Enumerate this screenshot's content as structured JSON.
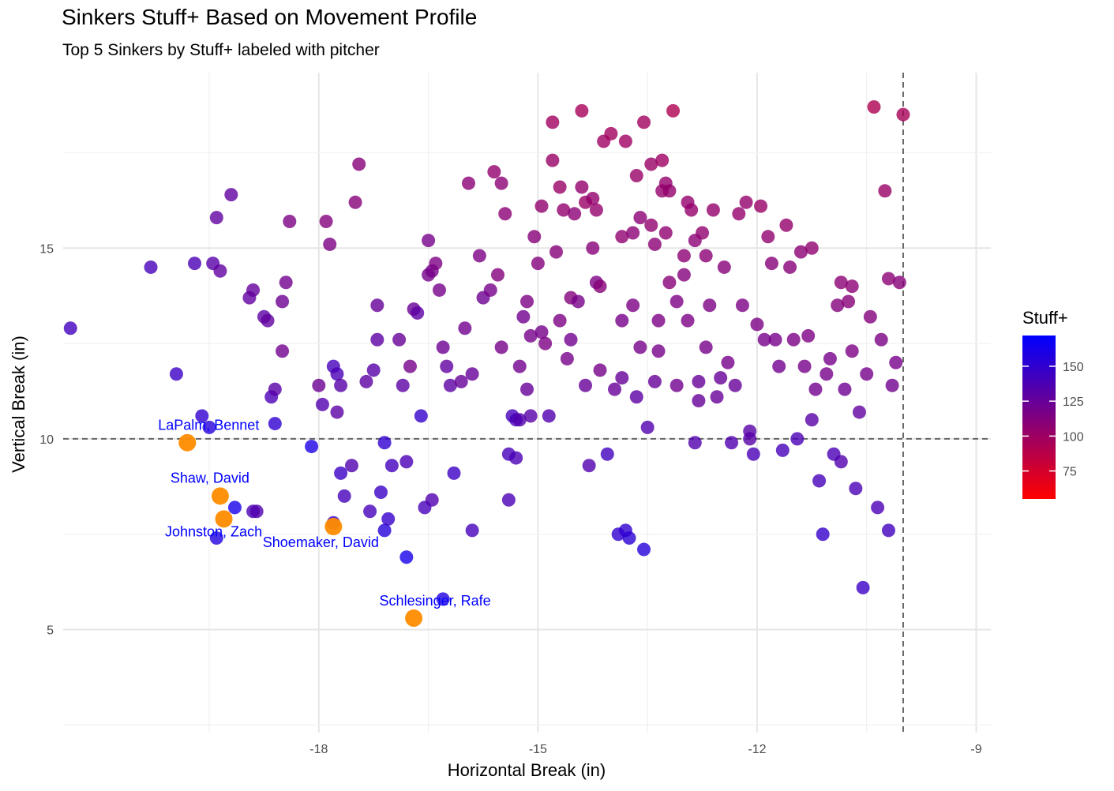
{
  "colors": {
    "low": "#ff0000",
    "high": "#0000ff",
    "highlight": "#ff8c00",
    "label": "#0000ff",
    "grid_major": "#e6e6e6",
    "grid_minor": "#f2f2f2",
    "reference_line": "#666666"
  },
  "chart_data": {
    "type": "scatter",
    "title": "Sinkers Stuff+ Based on Movement Profile",
    "subtitle": "Top 5 Sinkers by Stuff+ labeled with pitcher",
    "xlabel": "Horizontal Break (in)",
    "ylabel": "Vertical Break (in)",
    "xlim": [
      -21.5,
      -8.8
    ],
    "ylim": [
      2.3,
      19.6
    ],
    "x_ticks": [
      -18,
      -15,
      -12,
      -9
    ],
    "y_ticks": [
      5,
      10,
      15
    ],
    "grid": true,
    "reference_lines": {
      "vertical_x": -10,
      "horizontal_y": 10
    },
    "legend": {
      "title": "Stuff+",
      "position": "right",
      "scale": "gradient",
      "range": [
        55,
        172
      ],
      "ticks": [
        75,
        100,
        125,
        150
      ]
    },
    "highlighted": [
      {
        "name": "LaPalm, Bennet",
        "x": -19.8,
        "y": 9.9
      },
      {
        "name": "Shaw, David",
        "x": -19.35,
        "y": 8.5
      },
      {
        "name": "Johnston, Zach",
        "x": -19.3,
        "y": 7.9
      },
      {
        "name": "Shoemaker, David",
        "x": -17.8,
        "y": 7.7
      },
      {
        "name": "Schlesinger, Rafe",
        "x": -16.7,
        "y": 5.3
      }
    ],
    "points": [
      [
        -21.4,
        12.9,
        142
      ],
      [
        -20.3,
        14.5,
        140
      ],
      [
        -19.95,
        11.7,
        145
      ],
      [
        -19.7,
        14.6,
        138
      ],
      [
        -19.6,
        10.6,
        150
      ],
      [
        -19.5,
        10.3,
        155
      ],
      [
        -19.45,
        14.6,
        132
      ],
      [
        -19.35,
        14.4,
        128
      ],
      [
        -19.4,
        7.4,
        158
      ],
      [
        -19.4,
        15.8,
        128
      ],
      [
        -19.15,
        8.2,
        162
      ],
      [
        -19.2,
        16.4,
        128
      ],
      [
        -18.95,
        13.7,
        128
      ],
      [
        -18.9,
        13.9,
        126
      ],
      [
        -18.9,
        8.1,
        138
      ],
      [
        -18.85,
        8.1,
        135
      ],
      [
        -18.75,
        13.2,
        130
      ],
      [
        -18.7,
        13.1,
        128
      ],
      [
        -18.65,
        11.1,
        138
      ],
      [
        -18.6,
        11.3,
        132
      ],
      [
        -18.6,
        10.4,
        150
      ],
      [
        -18.5,
        12.3,
        120
      ],
      [
        -18.5,
        13.6,
        122
      ],
      [
        -18.45,
        14.1,
        120
      ],
      [
        -18.4,
        15.7,
        115
      ],
      [
        -18.1,
        9.8,
        160
      ],
      [
        -18.0,
        11.4,
        122
      ],
      [
        -17.95,
        10.9,
        135
      ],
      [
        -17.9,
        15.7,
        112
      ],
      [
        -17.85,
        15.1,
        115
      ],
      [
        -17.8,
        11.9,
        140
      ],
      [
        -17.75,
        11.7,
        138
      ],
      [
        -17.8,
        7.8,
        145
      ],
      [
        -17.75,
        10.7,
        130
      ],
      [
        -17.7,
        9.1,
        145
      ],
      [
        -17.7,
        11.4,
        132
      ],
      [
        -17.65,
        8.5,
        140
      ],
      [
        -17.55,
        9.3,
        135
      ],
      [
        -17.5,
        16.2,
        110
      ],
      [
        -17.45,
        17.2,
        110
      ],
      [
        -17.35,
        11.5,
        130
      ],
      [
        -17.3,
        8.1,
        140
      ],
      [
        -17.25,
        11.8,
        132
      ],
      [
        -17.2,
        13.5,
        125
      ],
      [
        -17.2,
        12.6,
        130
      ],
      [
        -17.15,
        8.6,
        145
      ],
      [
        -17.1,
        9.9,
        150
      ],
      [
        -17.1,
        7.6,
        155
      ],
      [
        -17.05,
        7.9,
        148
      ],
      [
        -17.0,
        9.3,
        142
      ],
      [
        -16.9,
        12.6,
        125
      ],
      [
        -16.85,
        11.4,
        130
      ],
      [
        -16.8,
        9.4,
        138
      ],
      [
        -16.8,
        6.9,
        162
      ],
      [
        -16.75,
        11.9,
        118
      ],
      [
        -16.7,
        13.4,
        125
      ],
      [
        -16.65,
        13.3,
        130
      ],
      [
        -16.6,
        10.6,
        148
      ],
      [
        -16.55,
        8.2,
        140
      ],
      [
        -16.5,
        15.2,
        118
      ],
      [
        -16.5,
        14.3,
        118
      ],
      [
        -16.45,
        14.4,
        118
      ],
      [
        -16.45,
        8.4,
        135
      ],
      [
        -16.4,
        14.6,
        115
      ],
      [
        -16.35,
        13.9,
        118
      ],
      [
        -16.3,
        12.4,
        122
      ],
      [
        -16.3,
        5.8,
        158
      ],
      [
        -16.25,
        11.9,
        128
      ],
      [
        -16.2,
        11.4,
        130
      ],
      [
        -16.15,
        9.1,
        145
      ],
      [
        -16.05,
        11.5,
        125
      ],
      [
        -16.0,
        12.9,
        120
      ],
      [
        -15.95,
        16.7,
        108
      ],
      [
        -15.9,
        11.7,
        125
      ],
      [
        -15.9,
        7.6,
        140
      ],
      [
        -15.8,
        14.8,
        115
      ],
      [
        -15.75,
        13.7,
        122
      ],
      [
        -15.65,
        13.9,
        118
      ],
      [
        -15.6,
        17.0,
        105
      ],
      [
        -15.55,
        14.3,
        112
      ],
      [
        -15.5,
        16.7,
        108
      ],
      [
        -15.5,
        12.4,
        118
      ],
      [
        -15.45,
        15.9,
        108
      ],
      [
        -15.4,
        8.4,
        138
      ],
      [
        -15.4,
        9.6,
        140
      ],
      [
        -15.35,
        10.6,
        140
      ],
      [
        -15.3,
        9.5,
        138
      ],
      [
        -15.3,
        10.5,
        140
      ],
      [
        -15.25,
        10.5,
        135
      ],
      [
        -15.25,
        11.9,
        120
      ],
      [
        -15.2,
        13.2,
        120
      ],
      [
        -15.15,
        11.3,
        125
      ],
      [
        -15.15,
        13.6,
        115
      ],
      [
        -15.1,
        12.7,
        118
      ],
      [
        -15.1,
        10.6,
        132
      ],
      [
        -15.05,
        15.3,
        110
      ],
      [
        -15.0,
        14.6,
        112
      ],
      [
        -14.95,
        16.1,
        105
      ],
      [
        -14.95,
        12.8,
        118
      ],
      [
        -14.9,
        12.5,
        115
      ],
      [
        -14.85,
        10.6,
        135
      ],
      [
        -14.8,
        17.3,
        102
      ],
      [
        -14.8,
        18.3,
        98
      ],
      [
        -14.75,
        14.9,
        110
      ],
      [
        -14.7,
        13.1,
        115
      ],
      [
        -14.7,
        16.6,
        102
      ],
      [
        -14.65,
        16.0,
        105
      ],
      [
        -14.6,
        12.1,
        118
      ],
      [
        -14.55,
        13.7,
        112
      ],
      [
        -14.55,
        12.6,
        120
      ],
      [
        -14.5,
        15.9,
        108
      ],
      [
        -14.45,
        13.6,
        118
      ],
      [
        -14.4,
        18.6,
        96
      ],
      [
        -14.4,
        16.6,
        104
      ],
      [
        -14.35,
        16.2,
        102
      ],
      [
        -14.35,
        11.4,
        125
      ],
      [
        -14.3,
        9.3,
        135
      ],
      [
        -14.25,
        15.0,
        110
      ],
      [
        -14.25,
        16.3,
        104
      ],
      [
        -14.2,
        16.0,
        104
      ],
      [
        -14.2,
        14.1,
        115
      ],
      [
        -14.15,
        11.8,
        118
      ],
      [
        -14.15,
        14.0,
        110
      ],
      [
        -14.1,
        17.8,
        100
      ],
      [
        -14.05,
        9.6,
        142
      ],
      [
        -14.0,
        18.0,
        98
      ],
      [
        -13.95,
        11.3,
        125
      ],
      [
        -13.9,
        7.5,
        150
      ],
      [
        -13.85,
        11.6,
        125
      ],
      [
        -13.85,
        13.1,
        118
      ],
      [
        -13.85,
        15.3,
        106
      ],
      [
        -13.8,
        7.6,
        150
      ],
      [
        -13.8,
        17.8,
        100
      ],
      [
        -13.75,
        7.4,
        152
      ],
      [
        -13.7,
        13.5,
        115
      ],
      [
        -13.7,
        15.4,
        108
      ],
      [
        -13.65,
        16.9,
        102
      ],
      [
        -13.65,
        11.1,
        130
      ],
      [
        -13.6,
        15.8,
        108
      ],
      [
        -13.6,
        12.4,
        118
      ],
      [
        -13.55,
        7.1,
        155
      ],
      [
        -13.55,
        18.3,
        98
      ],
      [
        -13.5,
        10.3,
        135
      ],
      [
        -13.45,
        17.2,
        102
      ],
      [
        -13.45,
        15.6,
        106
      ],
      [
        -13.4,
        15.1,
        108
      ],
      [
        -13.4,
        11.5,
        125
      ],
      [
        -13.35,
        12.3,
        118
      ],
      [
        -13.35,
        13.1,
        115
      ],
      [
        -13.3,
        17.3,
        100
      ],
      [
        -13.3,
        16.5,
        104
      ],
      [
        -13.25,
        16.7,
        104
      ],
      [
        -13.25,
        15.4,
        106
      ],
      [
        -13.2,
        14.1,
        110
      ],
      [
        -13.2,
        16.5,
        104
      ],
      [
        -13.15,
        18.6,
        92
      ],
      [
        -13.1,
        13.6,
        115
      ],
      [
        -13.1,
        11.4,
        120
      ],
      [
        -13.0,
        14.8,
        108
      ],
      [
        -13.0,
        14.3,
        112
      ],
      [
        -12.95,
        13.1,
        115
      ],
      [
        -12.95,
        16.2,
        104
      ],
      [
        -12.9,
        16.0,
        104
      ],
      [
        -12.85,
        15.2,
        108
      ],
      [
        -12.85,
        9.9,
        135
      ],
      [
        -12.8,
        11.0,
        125
      ],
      [
        -12.8,
        11.5,
        125
      ],
      [
        -12.75,
        15.4,
        106
      ],
      [
        -12.7,
        12.4,
        118
      ],
      [
        -12.7,
        14.8,
        108
      ],
      [
        -12.65,
        13.5,
        115
      ],
      [
        -12.6,
        16.0,
        104
      ],
      [
        -12.55,
        11.1,
        125
      ],
      [
        -12.5,
        11.6,
        125
      ],
      [
        -12.45,
        14.5,
        110
      ],
      [
        -12.4,
        12.0,
        118
      ],
      [
        -12.35,
        9.9,
        135
      ],
      [
        -12.3,
        11.4,
        125
      ],
      [
        -12.25,
        15.9,
        104
      ],
      [
        -12.2,
        13.5,
        115
      ],
      [
        -12.15,
        16.2,
        104
      ],
      [
        -12.1,
        10.2,
        132
      ],
      [
        -12.1,
        10.0,
        132
      ],
      [
        -12.05,
        9.6,
        138
      ],
      [
        -12.0,
        13.0,
        115
      ],
      [
        -11.95,
        16.1,
        102
      ],
      [
        -11.9,
        12.6,
        118
      ],
      [
        -11.85,
        15.3,
        106
      ],
      [
        -11.8,
        14.6,
        110
      ],
      [
        -11.75,
        12.6,
        118
      ],
      [
        -11.7,
        11.9,
        120
      ],
      [
        -11.65,
        9.7,
        140
      ],
      [
        -11.6,
        15.6,
        104
      ],
      [
        -11.55,
        14.5,
        110
      ],
      [
        -11.5,
        12.6,
        115
      ],
      [
        -11.45,
        10.0,
        138
      ],
      [
        -11.4,
        14.9,
        108
      ],
      [
        -11.35,
        11.9,
        118
      ],
      [
        -11.3,
        12.7,
        115
      ],
      [
        -11.25,
        15.0,
        106
      ],
      [
        -11.25,
        10.5,
        132
      ],
      [
        -11.2,
        11.3,
        120
      ],
      [
        -11.15,
        8.9,
        140
      ],
      [
        -11.1,
        7.5,
        148
      ],
      [
        -11.05,
        11.7,
        118
      ],
      [
        -11.0,
        12.1,
        118
      ],
      [
        -10.95,
        9.6,
        138
      ],
      [
        -10.9,
        13.5,
        112
      ],
      [
        -10.85,
        14.1,
        108
      ],
      [
        -10.85,
        9.4,
        135
      ],
      [
        -10.8,
        11.3,
        122
      ],
      [
        -10.75,
        13.6,
        110
      ],
      [
        -10.7,
        12.3,
        115
      ],
      [
        -10.7,
        14.0,
        108
      ],
      [
        -10.65,
        8.7,
        138
      ],
      [
        -10.6,
        10.7,
        128
      ],
      [
        -10.55,
        6.1,
        145
      ],
      [
        -10.5,
        11.7,
        118
      ],
      [
        -10.45,
        13.2,
        112
      ],
      [
        -10.4,
        18.7,
        92
      ],
      [
        -10.35,
        8.2,
        138
      ],
      [
        -10.3,
        12.6,
        116
      ],
      [
        -10.25,
        16.5,
        102
      ],
      [
        -10.2,
        14.2,
        108
      ],
      [
        -10.2,
        7.6,
        142
      ],
      [
        -10.15,
        11.4,
        120
      ],
      [
        -10.1,
        12.0,
        118
      ],
      [
        -10.05,
        14.1,
        110
      ],
      [
        -10.0,
        18.5,
        95
      ]
    ]
  }
}
